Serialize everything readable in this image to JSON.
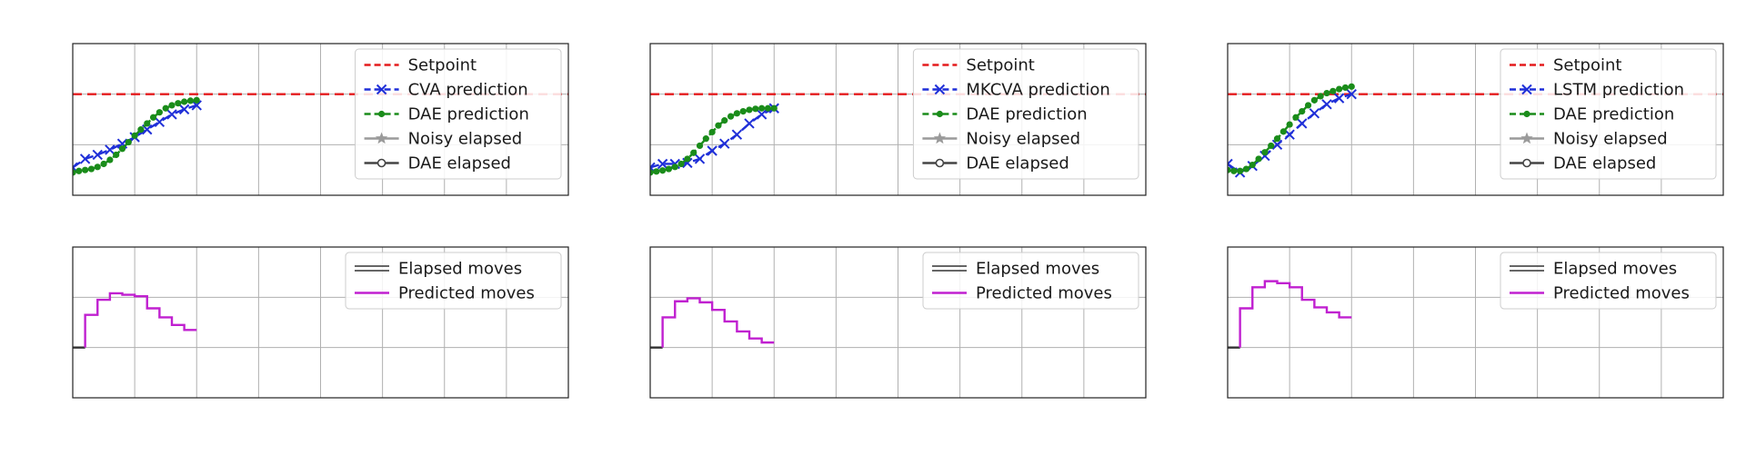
{
  "chart_data": [
    {
      "type": "line",
      "panel": "top-left",
      "xlim": [
        0,
        8
      ],
      "ylim": [
        0,
        3
      ],
      "grid": true,
      "legend_placement": "upper-right",
      "legend": [
        "Setpoint",
        "CVA prediction",
        "DAE prediction",
        "Noisy elapsed",
        "DAE elapsed"
      ],
      "series": [
        {
          "name": "Setpoint",
          "style": "dashed",
          "marker": "none",
          "color": "#e41a1c",
          "x": [
            0,
            8
          ],
          "y": [
            2.0,
            2.0
          ]
        },
        {
          "name": "CVA prediction",
          "style": "dashed",
          "marker": "x",
          "color": "#1f2fd8",
          "x": [
            0,
            0.2,
            0.4,
            0.6,
            0.8,
            1.0,
            1.2,
            1.4,
            1.6,
            1.8,
            2.0
          ],
          "y": [
            0.55,
            0.72,
            0.8,
            0.9,
            1.02,
            1.15,
            1.3,
            1.45,
            1.6,
            1.7,
            1.78
          ]
        },
        {
          "name": "DAE prediction",
          "style": "dashed",
          "marker": "dot",
          "color": "#1a8c1a",
          "x": [
            0,
            0.1,
            0.2,
            0.3,
            0.4,
            0.5,
            0.6,
            0.7,
            0.8,
            0.9,
            1.0,
            1.1,
            1.2,
            1.3,
            1.4,
            1.5,
            1.6,
            1.7,
            1.8,
            1.9,
            2.0
          ],
          "y": [
            0.45,
            0.48,
            0.5,
            0.52,
            0.56,
            0.62,
            0.7,
            0.8,
            0.92,
            1.05,
            1.18,
            1.3,
            1.42,
            1.54,
            1.64,
            1.72,
            1.78,
            1.82,
            1.85,
            1.87,
            1.88
          ]
        },
        {
          "name": "Noisy elapsed",
          "style": "solid",
          "marker": "star",
          "color": "#9a9a9a",
          "x": [],
          "y": []
        },
        {
          "name": "DAE elapsed",
          "style": "solid",
          "marker": "circle",
          "color": "#444444",
          "x": [],
          "y": []
        }
      ]
    },
    {
      "type": "line",
      "panel": "top-middle",
      "xlim": [
        0,
        8
      ],
      "ylim": [
        0,
        3
      ],
      "grid": true,
      "legend_placement": "upper-right",
      "legend": [
        "Setpoint",
        "MKCVA prediction",
        "DAE prediction",
        "Noisy elapsed",
        "DAE elapsed"
      ],
      "series": [
        {
          "name": "Setpoint",
          "style": "dashed",
          "marker": "none",
          "color": "#e41a1c",
          "x": [
            0,
            8
          ],
          "y": [
            2.0,
            2.0
          ]
        },
        {
          "name": "MKCVA prediction",
          "style": "dashed",
          "marker": "x",
          "color": "#1f2fd8",
          "x": [
            0,
            0.2,
            0.4,
            0.6,
            0.8,
            1.0,
            1.2,
            1.4,
            1.6,
            1.8,
            2.0
          ],
          "y": [
            0.55,
            0.62,
            0.62,
            0.64,
            0.72,
            0.88,
            1.02,
            1.2,
            1.42,
            1.6,
            1.72
          ]
        },
        {
          "name": "DAE prediction",
          "style": "dashed",
          "marker": "dot",
          "color": "#1a8c1a",
          "x": [
            0,
            0.1,
            0.2,
            0.3,
            0.4,
            0.5,
            0.6,
            0.7,
            0.8,
            0.9,
            1.0,
            1.1,
            1.2,
            1.3,
            1.4,
            1.5,
            1.6,
            1.7,
            1.8,
            1.9,
            2.0
          ],
          "y": [
            0.45,
            0.47,
            0.49,
            0.52,
            0.56,
            0.62,
            0.72,
            0.84,
            0.98,
            1.12,
            1.25,
            1.38,
            1.48,
            1.56,
            1.62,
            1.66,
            1.69,
            1.71,
            1.72,
            1.72,
            1.72
          ]
        },
        {
          "name": "Noisy elapsed",
          "style": "solid",
          "marker": "star",
          "color": "#9a9a9a",
          "x": [],
          "y": []
        },
        {
          "name": "DAE elapsed",
          "style": "solid",
          "marker": "circle",
          "color": "#444444",
          "x": [],
          "y": []
        }
      ]
    },
    {
      "type": "line",
      "panel": "top-right",
      "xlim": [
        0,
        8
      ],
      "ylim": [
        0,
        3
      ],
      "grid": true,
      "legend_placement": "upper-right",
      "legend": [
        "Setpoint",
        "LSTM prediction",
        "DAE prediction",
        "Noisy elapsed",
        "DAE elapsed"
      ],
      "series": [
        {
          "name": "Setpoint",
          "style": "dashed",
          "marker": "none",
          "color": "#e41a1c",
          "x": [
            0,
            8
          ],
          "y": [
            2.0,
            2.0
          ]
        },
        {
          "name": "LSTM prediction",
          "style": "dashed",
          "marker": "x",
          "color": "#1f2fd8",
          "x": [
            0,
            0.2,
            0.4,
            0.6,
            0.8,
            1.0,
            1.2,
            1.4,
            1.6,
            1.8,
            2.0
          ],
          "y": [
            0.62,
            0.45,
            0.58,
            0.78,
            1.0,
            1.2,
            1.42,
            1.62,
            1.8,
            1.92,
            2.0
          ]
        },
        {
          "name": "DAE prediction",
          "style": "dashed",
          "marker": "dot",
          "color": "#1a8c1a",
          "x": [
            0,
            0.1,
            0.2,
            0.3,
            0.4,
            0.5,
            0.6,
            0.7,
            0.8,
            0.9,
            1.0,
            1.1,
            1.2,
            1.3,
            1.4,
            1.5,
            1.6,
            1.7,
            1.8,
            1.9,
            2.0
          ],
          "y": [
            0.5,
            0.48,
            0.48,
            0.52,
            0.6,
            0.72,
            0.85,
            0.98,
            1.12,
            1.26,
            1.4,
            1.54,
            1.66,
            1.78,
            1.88,
            1.96,
            2.02,
            2.06,
            2.1,
            2.13,
            2.15
          ]
        },
        {
          "name": "Noisy elapsed",
          "style": "solid",
          "marker": "star",
          "color": "#9a9a9a",
          "x": [],
          "y": []
        },
        {
          "name": "DAE elapsed",
          "style": "solid",
          "marker": "circle",
          "color": "#444444",
          "x": [],
          "y": []
        }
      ]
    },
    {
      "type": "line",
      "panel": "bottom-left",
      "xlim": [
        0,
        8
      ],
      "ylim": [
        -1,
        2
      ],
      "grid": true,
      "legend_placement": "upper-right",
      "legend": [
        "Elapsed moves",
        "Predicted moves"
      ],
      "series": [
        {
          "name": "Elapsed moves",
          "style": "solid",
          "marker": "none",
          "color": "#333333",
          "x": [
            0,
            0.2
          ],
          "y": [
            0,
            0
          ]
        },
        {
          "name": "Predicted moves",
          "style": "steps",
          "marker": "none",
          "color": "#c020d0",
          "x": [
            0.2,
            0.4,
            0.6,
            0.8,
            1.0,
            1.2,
            1.4,
            1.6,
            1.8,
            2.0
          ],
          "y": [
            0.65,
            0.95,
            1.08,
            1.05,
            1.02,
            0.78,
            0.6,
            0.45,
            0.35,
            0.35
          ]
        }
      ]
    },
    {
      "type": "line",
      "panel": "bottom-middle",
      "xlim": [
        0,
        8
      ],
      "ylim": [
        -1,
        2
      ],
      "grid": true,
      "legend_placement": "upper-right",
      "legend": [
        "Elapsed moves",
        "Predicted moves"
      ],
      "series": [
        {
          "name": "Elapsed moves",
          "style": "solid",
          "marker": "none",
          "color": "#333333",
          "x": [
            0,
            0.2
          ],
          "y": [
            0,
            0
          ]
        },
        {
          "name": "Predicted moves",
          "style": "steps",
          "marker": "none",
          "color": "#c020d0",
          "x": [
            0.2,
            0.4,
            0.6,
            0.8,
            1.0,
            1.2,
            1.4,
            1.6,
            1.8,
            2.0
          ],
          "y": [
            0.6,
            0.92,
            0.98,
            0.9,
            0.75,
            0.52,
            0.32,
            0.18,
            0.1,
            0.1
          ]
        }
      ]
    },
    {
      "type": "line",
      "panel": "bottom-right",
      "xlim": [
        0,
        8
      ],
      "ylim": [
        -1,
        2
      ],
      "grid": true,
      "legend_placement": "upper-right",
      "legend": [
        "Elapsed moves",
        "Predicted moves"
      ],
      "series": [
        {
          "name": "Elapsed moves",
          "style": "solid",
          "marker": "none",
          "color": "#333333",
          "x": [
            0,
            0.2
          ],
          "y": [
            0,
            0
          ]
        },
        {
          "name": "Predicted moves",
          "style": "steps",
          "marker": "none",
          "color": "#c020d0",
          "x": [
            0.2,
            0.4,
            0.6,
            0.8,
            1.0,
            1.2,
            1.4,
            1.6,
            1.8,
            2.0
          ],
          "y": [
            0.78,
            1.2,
            1.32,
            1.28,
            1.2,
            0.95,
            0.8,
            0.7,
            0.6,
            0.6
          ]
        }
      ]
    }
  ]
}
